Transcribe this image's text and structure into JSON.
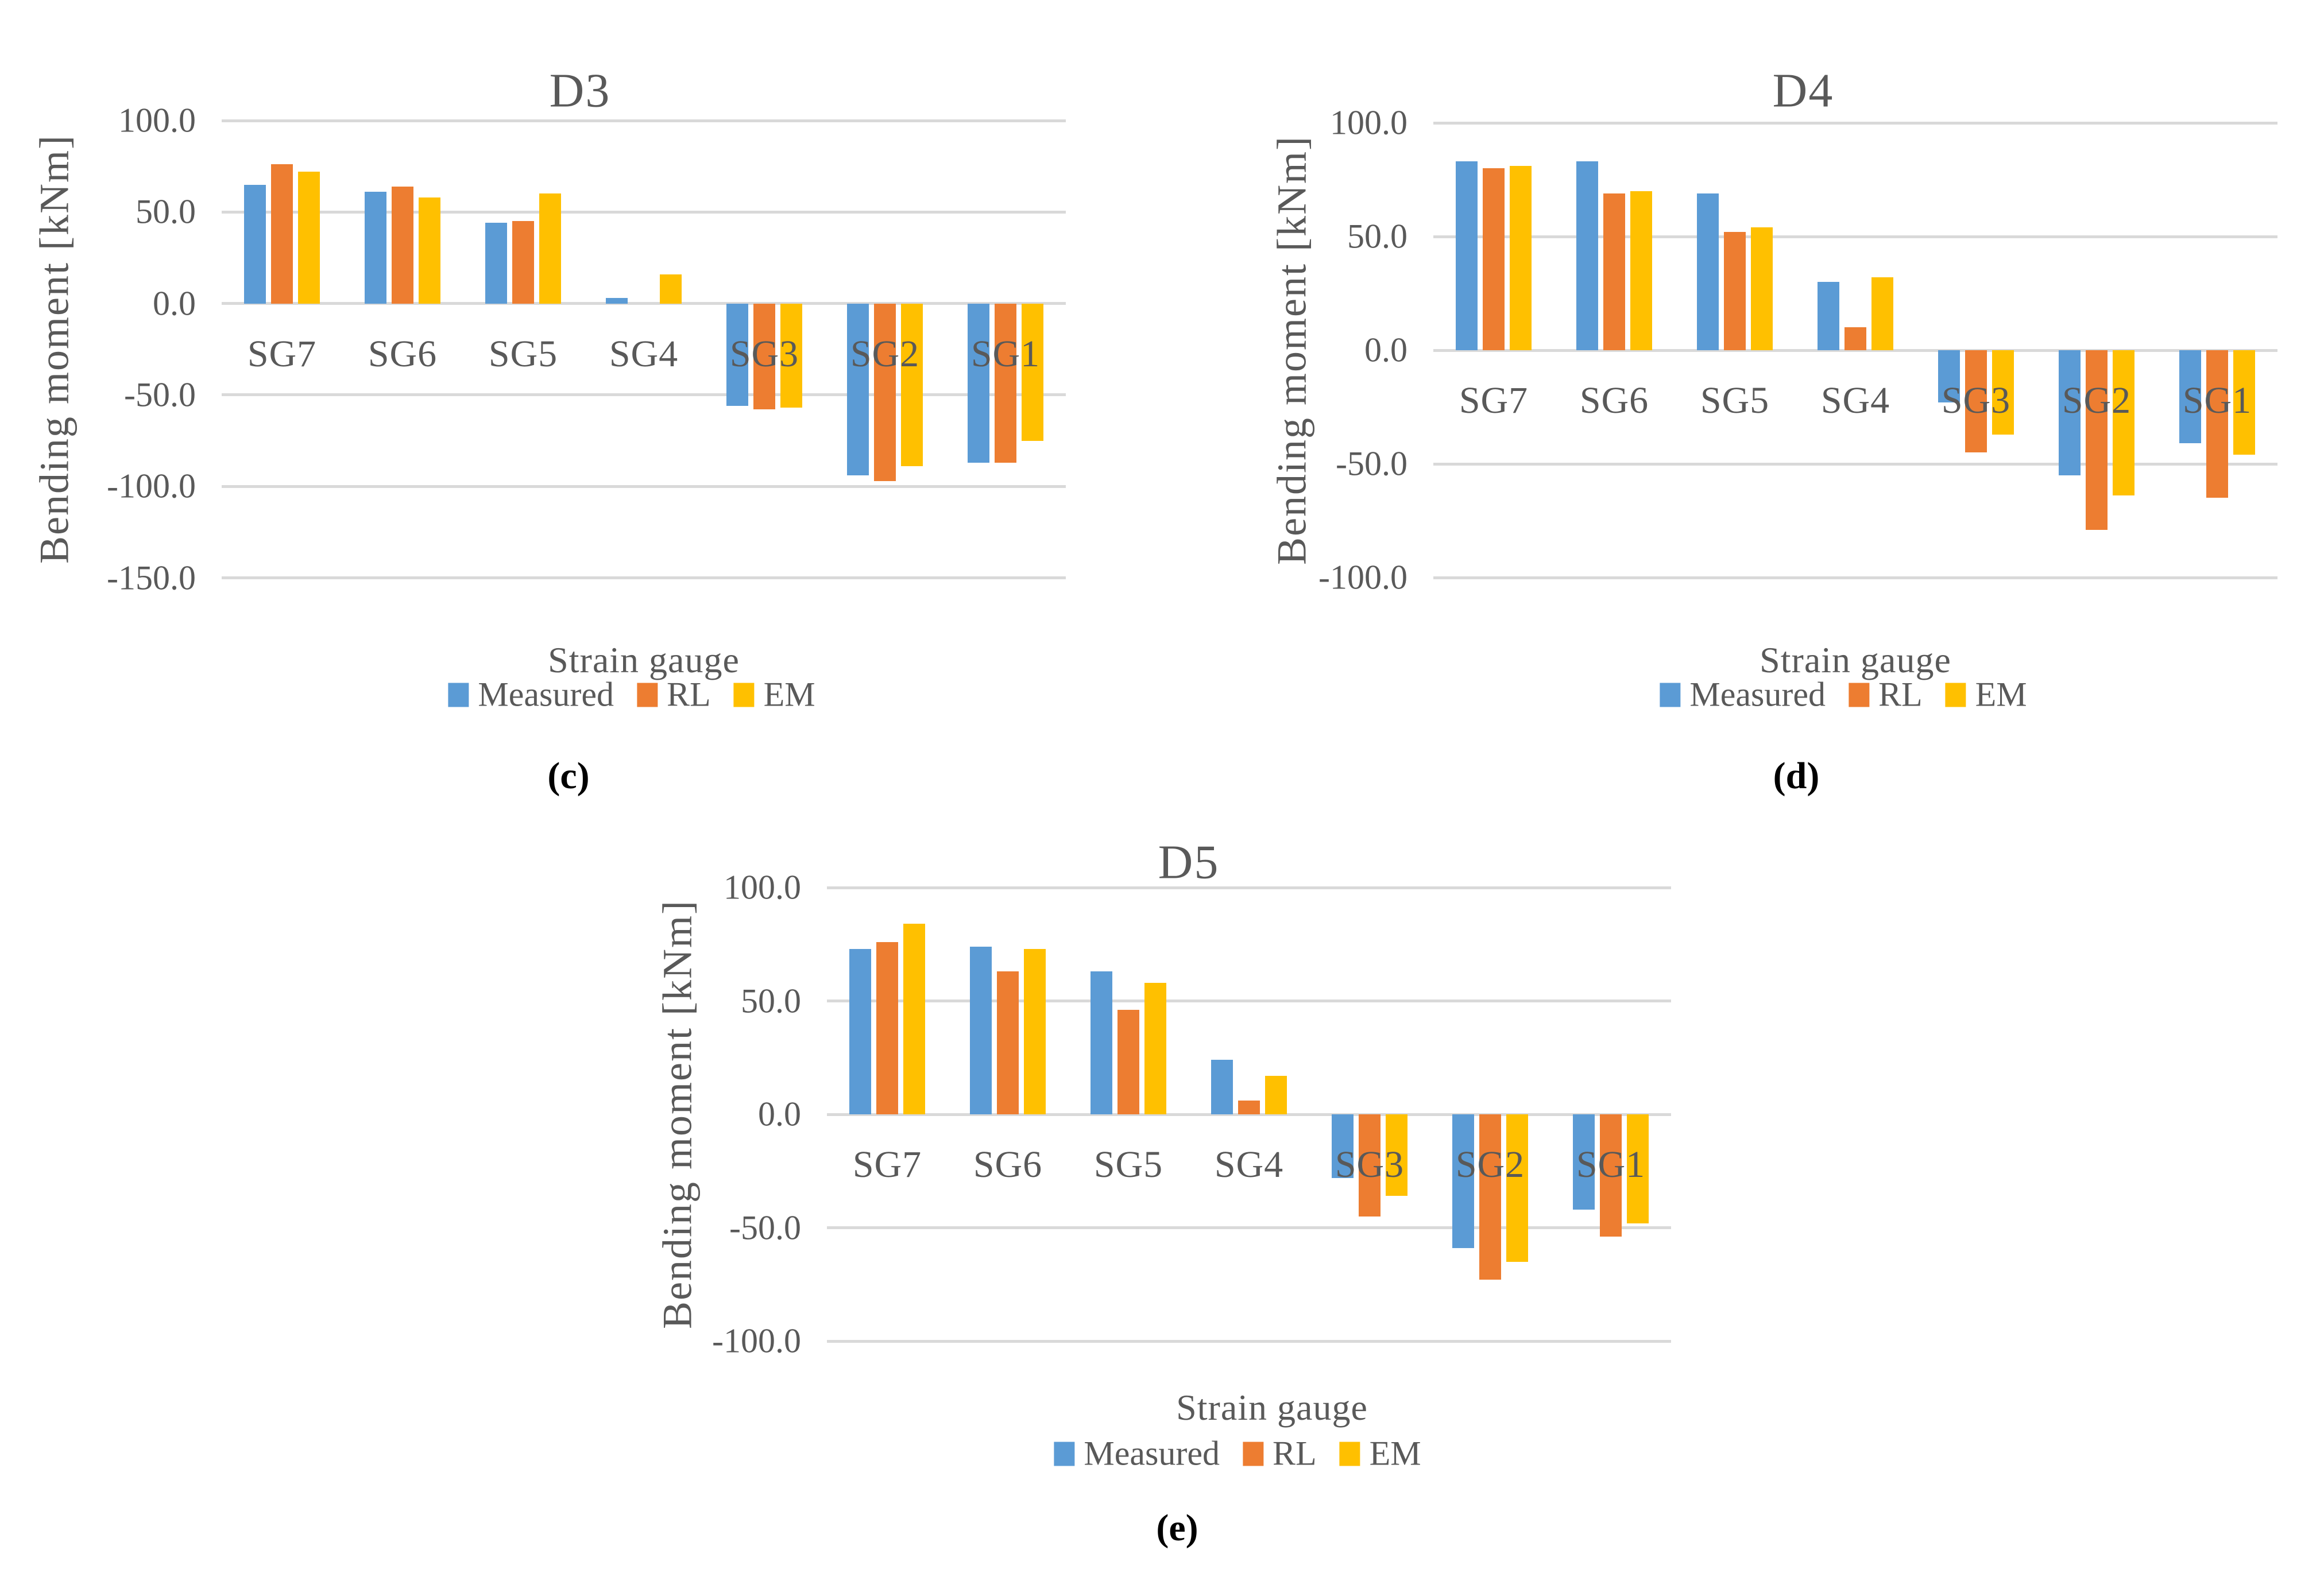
{
  "figure": {
    "text_color": "#595959",
    "gridline_color": "#D9D9D9",
    "caption_color": "#000000",
    "background_color": "#FFFFFF"
  },
  "chart_data": [
    {
      "type": "bar",
      "title": "D3",
      "caption": "(c)",
      "xlabel": "Strain gauge",
      "ylabel": "Bending moment [kNm]",
      "ylim": [
        -150,
        100
      ],
      "ytick_step": 50,
      "ytick_labels": [
        "100.0",
        "50.0",
        "0.0",
        "-50.0",
        "-100.0",
        "-150.0"
      ],
      "grid": true,
      "legend_position": "bottom",
      "categories": [
        "SG7",
        "SG6",
        "SG5",
        "SG4",
        "SG3",
        "SG2",
        "SG1"
      ],
      "series": [
        {
          "name": "Measured",
          "color": "#5B9BD5",
          "values": [
            65,
            61,
            44,
            3,
            -56,
            -94,
            -87
          ]
        },
        {
          "name": "RL",
          "color": "#ED7D31",
          "values": [
            76,
            64,
            45,
            0,
            -58,
            -97,
            -87
          ]
        },
        {
          "name": "EM",
          "color": "#FFC000",
          "values": [
            72,
            58,
            60,
            16,
            -57,
            -89,
            -75
          ]
        }
      ]
    },
    {
      "type": "bar",
      "title": "D4",
      "caption": "(d)",
      "xlabel": "Strain gauge",
      "ylabel": "Bending moment [kNm]",
      "ylim": [
        -100,
        100
      ],
      "ytick_step": 50,
      "ytick_labels": [
        "100.0",
        "50.0",
        "0.0",
        "-50.0",
        "-100.0"
      ],
      "grid": true,
      "legend_position": "bottom",
      "categories": [
        "SG7",
        "SG6",
        "SG5",
        "SG4",
        "SG3",
        "SG2",
        "SG1"
      ],
      "series": [
        {
          "name": "Measured",
          "color": "#5B9BD5",
          "values": [
            83,
            83,
            69,
            30,
            -23,
            -55,
            -41
          ]
        },
        {
          "name": "RL",
          "color": "#ED7D31",
          "values": [
            80,
            69,
            52,
            10,
            -45,
            -79,
            -65
          ]
        },
        {
          "name": "EM",
          "color": "#FFC000",
          "values": [
            81,
            70,
            54,
            32,
            -37,
            -64,
            -46
          ]
        }
      ]
    },
    {
      "type": "bar",
      "title": "D5",
      "caption": "(e)",
      "xlabel": "Strain gauge",
      "ylabel": "Bending moment [kNm]",
      "ylim": [
        -100,
        100
      ],
      "ytick_step": 50,
      "ytick_labels": [
        "100.0",
        "50.0",
        "0.0",
        "-50.0",
        "-100.0"
      ],
      "grid": true,
      "legend_position": "bottom",
      "categories": [
        "SG7",
        "SG6",
        "SG5",
        "SG4",
        "SG3",
        "SG2",
        "SG1"
      ],
      "series": [
        {
          "name": "Measured",
          "color": "#5B9BD5",
          "values": [
            73,
            74,
            63,
            24,
            -28,
            -59,
            -42
          ]
        },
        {
          "name": "RL",
          "color": "#ED7D31",
          "values": [
            76,
            63,
            46,
            6,
            -45,
            -73,
            -54
          ]
        },
        {
          "name": "EM",
          "color": "#FFC000",
          "values": [
            84,
            73,
            58,
            17,
            -36,
            -65,
            -48
          ]
        }
      ]
    }
  ]
}
